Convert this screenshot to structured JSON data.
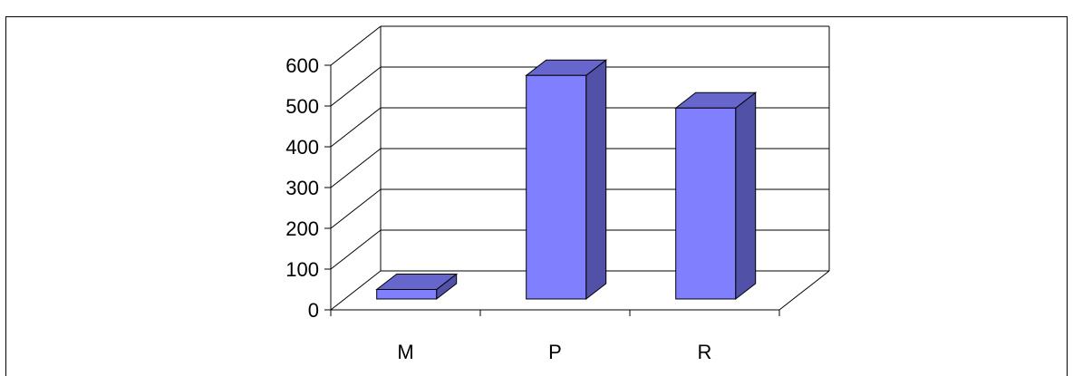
{
  "chart_data": {
    "type": "bar",
    "style": "3d-column",
    "categories": [
      "M",
      "P",
      "R"
    ],
    "series": [
      {
        "values": [
          50,
          575,
          495
        ]
      }
    ],
    "ylim": [
      0,
      600
    ],
    "yticks": [
      0,
      100,
      200,
      300,
      400,
      500,
      600
    ],
    "grid": true,
    "legend": "none",
    "colors": {
      "bar_front": "#8080ff",
      "bar_top": "#6666cc",
      "bar_side": "#5151a8",
      "grid": "#000000"
    }
  }
}
